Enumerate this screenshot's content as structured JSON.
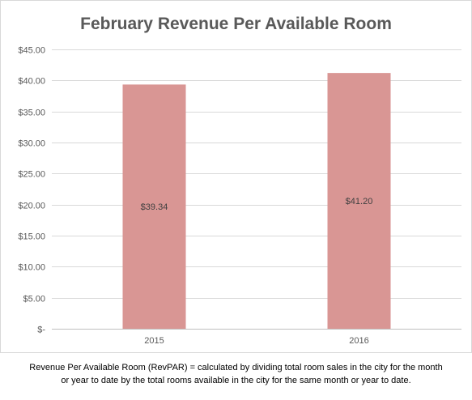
{
  "chart_data": {
    "type": "bar",
    "title": "February Revenue Per Available Room",
    "categories": [
      "2015",
      "2016"
    ],
    "values": [
      39.34,
      41.2
    ],
    "data_labels": [
      "$39.34",
      "$41.20"
    ],
    "ylim": [
      0,
      45
    ],
    "yticks": [
      0,
      5,
      10,
      15,
      20,
      25,
      30,
      35,
      40,
      45
    ],
    "ytick_labels": [
      "$-",
      "$5.00",
      "$10.00",
      "$15.00",
      "$20.00",
      "$25.00",
      "$30.00",
      "$35.00",
      "$40.00",
      "$45.00"
    ],
    "xlabel": "",
    "ylabel": "",
    "grid": true,
    "bar_color": "#d99694",
    "grid_color": "#d9d9d9"
  },
  "caption": {
    "line1": "Revenue Per Available Room (RevPAR) = calculated by dividing total room sales in the city for the month",
    "line2": "or year to date by the total rooms available in the city for the same month or year to date."
  }
}
